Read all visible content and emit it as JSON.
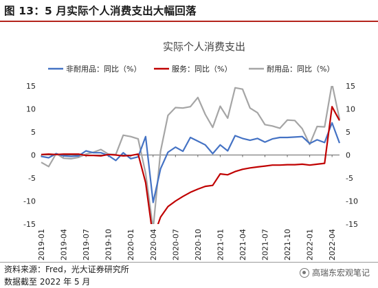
{
  "header": {
    "figure_title": "图 13：5 月实际个人消费支出大幅回落"
  },
  "footer": {
    "source": "资料来源：Fred，光大证券研究所",
    "date_note": "数据截至 2022 年 5 月",
    "watermark": "高瑞东宏观笔记"
  },
  "chart_data": {
    "type": "line",
    "title": "实际个人消费支出",
    "xlabel": "",
    "ylabel": "",
    "ylim": [
      -15,
      15
    ],
    "y_ticks": [
      15,
      10,
      5,
      0,
      -5,
      -10,
      -15
    ],
    "right_axis_ticks": [
      "15",
      "10",
      "5",
      "0",
      "-5",
      "-10",
      "-15"
    ],
    "x_tick_labels": [
      "2019-01",
      "2019-04",
      "2019-07",
      "2019-10",
      "2020-01",
      "2020-04",
      "2020-07",
      "2020-10",
      "2021-01",
      "2021-04",
      "2021-07",
      "2021-10",
      "2022-01",
      "2022-04"
    ],
    "x": [
      "2019-01",
      "2019-02",
      "2019-03",
      "2019-04",
      "2019-05",
      "2019-06",
      "2019-07",
      "2019-08",
      "2019-09",
      "2019-10",
      "2019-11",
      "2019-12",
      "2020-01",
      "2020-02",
      "2020-03",
      "2020-04",
      "2020-05",
      "2020-06",
      "2020-07",
      "2020-08",
      "2020-09",
      "2020-10",
      "2020-11",
      "2020-12",
      "2021-01",
      "2021-02",
      "2021-03",
      "2021-04",
      "2021-05",
      "2021-06",
      "2021-07",
      "2021-08",
      "2021-09",
      "2021-10",
      "2021-11",
      "2021-12",
      "2022-01",
      "2022-02",
      "2022-03",
      "2022-04",
      "2022-05"
    ],
    "grid": false,
    "legend_position": "top",
    "series": [
      {
        "name": "非耐用品：同比（%）",
        "color": "#4472c4",
        "values": [
          -0.3,
          -0.6,
          0.3,
          -0.2,
          -0.3,
          -0.2,
          0.9,
          0.5,
          0.5,
          -0.1,
          -1.2,
          0.5,
          -0.8,
          -0.4,
          4.0,
          -10.3,
          -3.0,
          0.6,
          1.7,
          0.8,
          3.8,
          3.0,
          2.2,
          0.3,
          2.2,
          0.9,
          4.2,
          3.6,
          3.2,
          3.6,
          2.8,
          3.5,
          3.8,
          3.8,
          3.9,
          4.0,
          2.5,
          3.3,
          2.7,
          7.0,
          2.6
        ]
      },
      {
        "name": "服务：同比（%）",
        "color": "#c00000",
        "values": [
          0.1,
          0.2,
          0.1,
          0.2,
          0.2,
          0.2,
          -0.1,
          -0.1,
          -0.2,
          0.1,
          0.0,
          -0.2,
          -0.1,
          0.2,
          -6.0,
          -18.0,
          -13.5,
          -11.2,
          -10.0,
          -9.0,
          -8.1,
          -7.4,
          -6.8,
          -6.6,
          -4.1,
          -4.3,
          -3.6,
          -3.1,
          -2.8,
          -2.6,
          -2.4,
          -2.2,
          -2.2,
          -2.1,
          -2.1,
          -2.0,
          -2.2,
          -2.0,
          -1.8,
          10.5,
          7.5
        ]
      },
      {
        "name": "耐用品：同比（%）",
        "color": "#a5a5a5",
        "values": [
          -1.6,
          -2.5,
          0.3,
          -0.7,
          -0.8,
          -0.5,
          0.2,
          0.6,
          1.2,
          0.2,
          0.1,
          4.3,
          4.0,
          3.5,
          -4.0,
          -16.0,
          0.8,
          8.6,
          10.3,
          10.2,
          10.5,
          12.5,
          8.8,
          6.0,
          10.6,
          8.0,
          14.6,
          14.3,
          10.2,
          9.2,
          6.6,
          6.3,
          5.8,
          7.6,
          7.5,
          5.7,
          2.3,
          6.2,
          6.1,
          15.5,
          7.8
        ]
      }
    ]
  }
}
